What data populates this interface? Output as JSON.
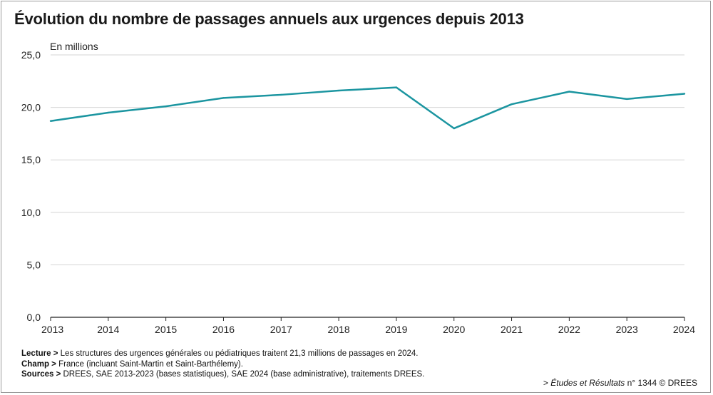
{
  "title": "Évolution du nombre de passages annuels aux urgences depuis 2013",
  "chart_data": {
    "type": "line",
    "title": "Évolution du nombre de passages annuels aux urgences depuis 2013",
    "unit_label": "En millions",
    "xlabel": "",
    "ylabel": "En millions",
    "categories": [
      "2013",
      "2014",
      "2015",
      "2016",
      "2017",
      "2018",
      "2019",
      "2020",
      "2021",
      "2022",
      "2023",
      "2024"
    ],
    "series": [
      {
        "name": "Passages annuels aux urgences",
        "color": "#1b95a0",
        "values": [
          18.7,
          19.5,
          20.1,
          20.9,
          21.2,
          21.6,
          21.9,
          18.0,
          20.3,
          21.5,
          20.8,
          21.3
        ]
      }
    ],
    "ylim": [
      0,
      25
    ],
    "yticks": [
      "0,0",
      "5,0",
      "10,0",
      "15,0",
      "20,0",
      "25,0"
    ],
    "ytick_values": [
      0,
      5,
      10,
      15,
      20,
      25
    ],
    "grid": true,
    "legend": "none"
  },
  "notes": {
    "lecture_label": "Lecture >",
    "lecture_text": " Les structures des urgences générales ou pédiatriques traitent 21,3 millions de passages en 2024.",
    "champ_label": "Champ >",
    "champ_text": " France (incluant Saint-Martin et Saint-Barthélemy).",
    "sources_label": "Sources >",
    "sources_text": " DREES, SAE 2013-2023 (bases statistiques), SAE 2024 (base administrative), traitements DREES."
  },
  "credit": {
    "prefix": "> ",
    "publication": "Études et Résultats",
    "suffix": " n° 1344 © DREES"
  }
}
